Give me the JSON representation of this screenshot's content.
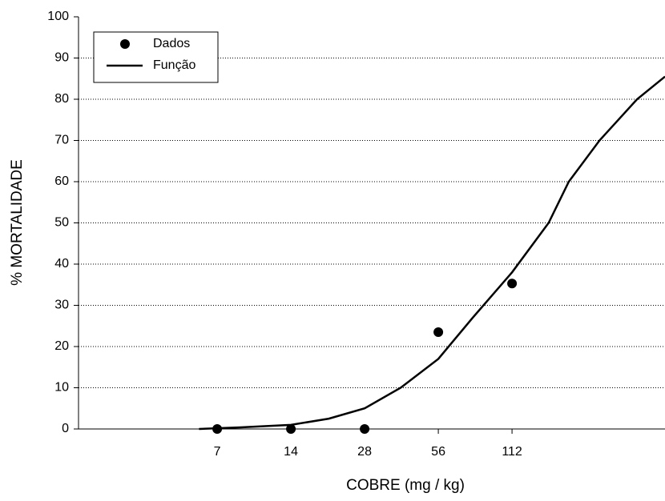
{
  "chart_data": {
    "type": "scatter",
    "xlabel": "COBRE (mg / kg)",
    "ylabel": "% MORTALIDADE",
    "xscale": "log2",
    "xlim": [
      1.9,
      472
    ],
    "xticks": [
      7,
      14,
      28,
      56,
      112
    ],
    "ylim": [
      0,
      100
    ],
    "yticks": [
      0,
      10,
      20,
      30,
      40,
      50,
      60,
      70,
      80,
      90,
      100
    ],
    "grid": true,
    "legend": "upper left",
    "series": [
      {
        "name": "Dados",
        "mode": "markers",
        "color": "#000000",
        "x": [
          7,
          14,
          28,
          56,
          112
        ],
        "values": [
          0,
          0,
          0,
          23.5,
          35.3
        ]
      },
      {
        "name": "Função",
        "mode": "line",
        "color": "#000000",
        "x": [
          5.9,
          8.7,
          14,
          20,
          28,
          39.3,
          56,
          77.4,
          112,
          158,
          191,
          255,
          363,
          472
        ],
        "values": [
          0,
          0.4,
          1,
          2.5,
          5,
          10,
          17,
          27,
          38,
          50,
          60,
          70,
          80,
          85.5
        ]
      }
    ]
  }
}
